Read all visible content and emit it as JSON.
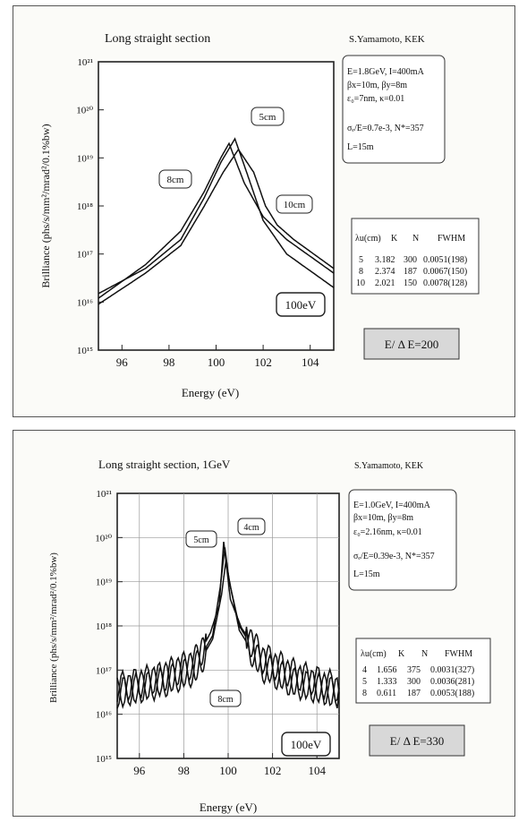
{
  "charts": [
    {
      "title": "Long straight section",
      "author": "S.Yamamoto, KEK",
      "params": [
        "E=1.8GeV, I=400mA",
        "βx=10m, βy=8m",
        "ε₀=7nm, κ=0.01",
        "σₑ/E=0.7e-3, N*=357",
        "L=15m"
      ],
      "table_headers": [
        "λu(cm)",
        "K",
        "N",
        "FWHM"
      ],
      "table_rows": [
        [
          "5",
          "3.182",
          "300",
          "0.0051(198)"
        ],
        [
          "8",
          "2.374",
          "187",
          "0.0067(150)"
        ],
        [
          "10",
          "2.021",
          "150",
          "0.0078(128)"
        ]
      ],
      "resolution_label": "E/ Δ E=200",
      "energy_label": "100eV",
      "curve_labels": [
        "5cm",
        "8cm",
        "10cm"
      ]
    },
    {
      "title": "Long straight section, 1GeV",
      "author": "S.Yamamoto, KEK",
      "params": [
        "E=1.0GeV, I=400mA",
        "βx=10m, βy=8m",
        "ε₀=2.16nm, κ=0.01",
        "σₑ/E=0.39e-3, N*=357",
        "L=15m"
      ],
      "table_headers": [
        "λu(cm)",
        "K",
        "N",
        "FWHM"
      ],
      "table_rows": [
        [
          "4",
          "1.656",
          "375",
          "0.0031(327)"
        ],
        [
          "5",
          "1.333",
          "300",
          "0.0036(281)"
        ],
        [
          "8",
          "0.611",
          "187",
          "0.0053(188)"
        ]
      ],
      "resolution_label": "E/ Δ E=330",
      "energy_label": "100eV",
      "curve_labels": [
        "4cm",
        "5cm",
        "8cm"
      ]
    }
  ],
  "chart_data": [
    {
      "type": "line",
      "title": "Long straight section",
      "xlabel": "Energy (eV)",
      "ylabel": "Brilliance (phs/s/mm²/mrad²/0.1%bw)",
      "xlim": [
        95,
        105
      ],
      "ylim": [
        1000000000000000.0,
        1e+21
      ],
      "yscale": "log",
      "x_ticks": [
        "96",
        "98",
        "100",
        "102",
        "104"
      ],
      "y_ticks": [
        "10¹⁵",
        "10¹⁶",
        "10¹⁷",
        "10¹⁸",
        "10¹⁹",
        "10²⁰",
        "10²¹"
      ],
      "grid": false,
      "series": [
        {
          "name": "5cm",
          "x": [
            95,
            97,
            98.5,
            99.5,
            100.2,
            100.8,
            101.3,
            102,
            103,
            105
          ],
          "values": [
            1.5e+16,
            5e+16,
            2e+17,
            1.5e+18,
            8e+18,
            2.5e+19,
            5e+18,
            5e+17,
            1e+17,
            2e+16
          ]
        },
        {
          "name": "8cm",
          "x": [
            95,
            97,
            98.5,
            99.5,
            100.2,
            100.55,
            101.2,
            102,
            103,
            105
          ],
          "values": [
            1.2e+16,
            6e+16,
            3e+17,
            2e+18,
            1e+19,
            2e+19,
            3e+18,
            6e+17,
            2e+17,
            4e+16
          ]
        },
        {
          "name": "10cm",
          "x": [
            95,
            97,
            98.5,
            99.5,
            100.3,
            100.95,
            101.6,
            102.1,
            102.6,
            103.3,
            105
          ],
          "values": [
            9000000000000000.0,
            4e+16,
            1.5e+17,
            1e+18,
            5e+18,
            1.5e+19,
            5e+18,
            1e+18,
            4e+17,
            2e+17,
            5e+16
          ]
        }
      ]
    },
    {
      "type": "line",
      "title": "Long straight section, 1GeV",
      "xlabel": "Energy (eV)",
      "ylabel": "Brilliance (phs/s/mm²/mrad²/0.1%bw)",
      "xlim": [
        95,
        105
      ],
      "ylim": [
        1000000000000000.0,
        1e+21
      ],
      "yscale": "log",
      "x_ticks": [
        "96",
        "98",
        "100",
        "102",
        "104"
      ],
      "y_ticks": [
        "10¹⁵",
        "10¹⁶",
        "10¹⁷",
        "10¹⁸",
        "10¹⁹",
        "10²⁰",
        "10²¹"
      ],
      "grid": true,
      "series": [
        {
          "name": "4cm",
          "x": [
            95,
            97,
            98.5,
            99.3,
            99.7,
            99.9,
            100.1,
            100.5,
            101.5,
            103,
            105
          ],
          "values": [
            3e+16,
            5e+16,
            1e+17,
            5e+17,
            5e+18,
            3e+19,
            8e+18,
            8e+17,
            1.2e+17,
            5e+16,
            3e+16
          ]
        },
        {
          "name": "5cm",
          "x": [
            95,
            97,
            98.5,
            99.3,
            99.65,
            99.85,
            100.05,
            100.5,
            101.5,
            103,
            105
          ],
          "values": [
            3e+16,
            6e+16,
            1.2e+17,
            6e+17,
            8e+18,
            6e+19,
            1e+19,
            1e+18,
            1.5e+17,
            6e+16,
            3e+16
          ]
        },
        {
          "name": "8cm",
          "x": [
            95,
            97,
            98.5,
            99.2,
            99.6,
            99.8,
            100.1,
            100.6,
            101.5,
            103,
            105
          ],
          "values": [
            4e+16,
            7e+16,
            1.5e+17,
            7e+17,
            3e+18,
            8e+19,
            4e+18,
            9e+17,
            2e+17,
            8e+16,
            4e+16
          ]
        }
      ]
    }
  ]
}
